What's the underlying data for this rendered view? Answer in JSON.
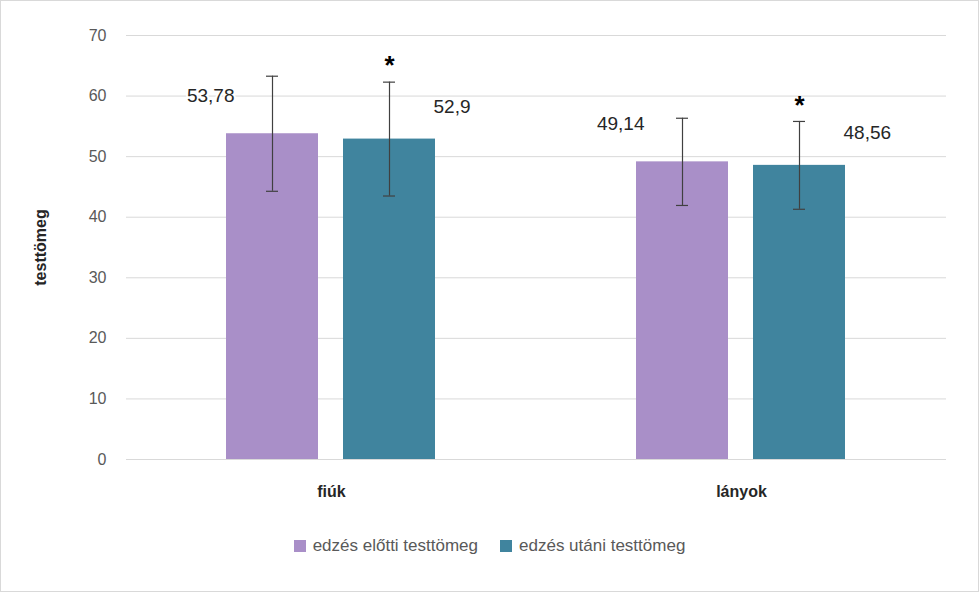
{
  "chart_data": {
    "type": "bar",
    "y_label": "testtömeg",
    "categories": [
      "fiúk",
      "lányok"
    ],
    "series": [
      {
        "name": "edzés előtti testtömeg",
        "color": "#a98fc8",
        "values": [
          53.78,
          49.14
        ],
        "value_labels": [
          "53,78",
          "49,14"
        ],
        "errors": [
          9.5,
          7.2
        ]
      },
      {
        "name": "edzés utáni testtömeg",
        "color": "#40849e",
        "values": [
          52.9,
          48.56
        ],
        "value_labels": [
          "52,9",
          "48,56"
        ],
        "errors": [
          9.4,
          7.25
        ]
      }
    ],
    "annotations": [
      {
        "text": "*",
        "category": "fiúk",
        "series": "edzés utáni testtömeg"
      },
      {
        "text": "*",
        "category": "lányok",
        "series": "edzés utáni testtömeg"
      }
    ],
    "ylim": [
      0,
      70
    ],
    "yticks": [
      0,
      10,
      20,
      30,
      40,
      50,
      60,
      70
    ],
    "grid": true,
    "legend": "bottom",
    "data_labels": true
  }
}
